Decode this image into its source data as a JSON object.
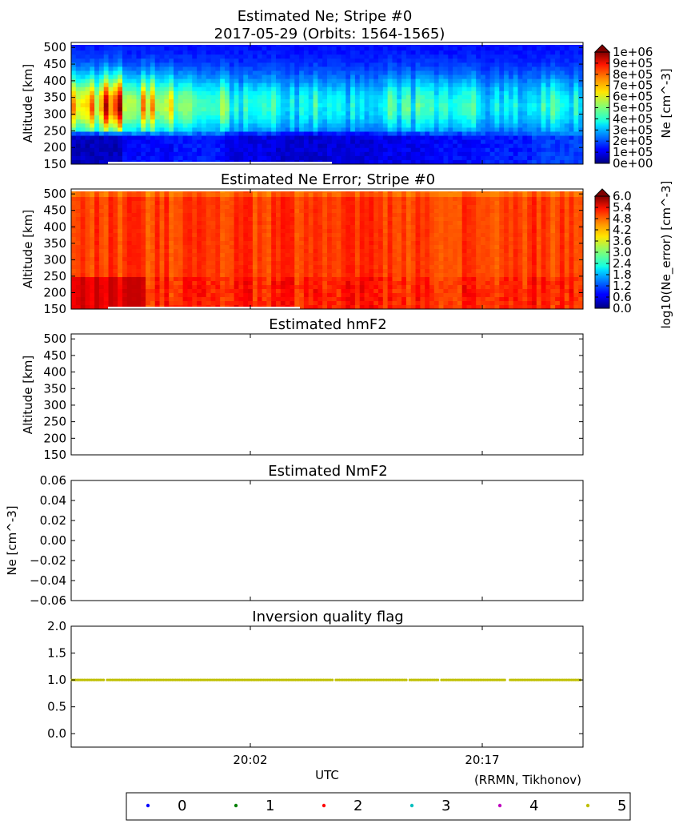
{
  "figure": {
    "panel1_title_line1": "Estimated Ne; Stripe #0",
    "panel1_title_line2": "2017-05-29 (Orbits: 1564-1565)",
    "panel2_title": "Estimated Ne Error; Stripe #0",
    "panel3_title": "Estimated hmF2",
    "panel4_title": "Estimated NmF2",
    "panel5_title": "Inversion quality flag",
    "xlabel": "UTC",
    "credit": "(RRMN, Tikhonov)"
  },
  "chart_data": [
    {
      "type": "heatmap",
      "title": "Estimated Ne; Stripe #0\n2017-05-29 (Orbits: 1564-1565)",
      "ylabel": "Altitude [km]",
      "ylim": [
        150,
        515
      ],
      "yticks": [
        150,
        200,
        250,
        300,
        350,
        400,
        450,
        500
      ],
      "xticks": [
        "20:02",
        "20:17"
      ],
      "colormap": "jet",
      "colorbar": {
        "label": "Ne [cm^-3]",
        "range": [
          0,
          1000000
        ],
        "extend": "max",
        "tick_labels": [
          "0e+00",
          "1e+05",
          "2e+05",
          "3e+05",
          "4e+05",
          "5e+05",
          "6e+05",
          "7e+05",
          "8e+05",
          "9e+05",
          "1e+06"
        ]
      },
      "layers": [
        {
          "altitude_km": [
            310,
            340
          ],
          "relative_intensity": [
            0.62,
            0.5,
            0.36,
            0.3,
            0.25,
            0.24,
            0.28,
            0.27,
            0.25,
            0.26
          ]
        },
        {
          "altitude_km": [
            180,
            240
          ],
          "relative_intensity": [
            0.03,
            0.1,
            0.12,
            0.07,
            0.05,
            0.06,
            0.08,
            0.1,
            0.12,
            0.15
          ]
        }
      ]
    },
    {
      "type": "heatmap",
      "title": "Estimated Ne Error; Stripe #0",
      "ylabel": "Altitude [km]",
      "ylim": [
        150,
        515
      ],
      "yticks": [
        150,
        200,
        250,
        300,
        350,
        400,
        450,
        500
      ],
      "xticks": [
        "20:02",
        "20:17"
      ],
      "colormap": "jet",
      "colorbar": {
        "label": "log10(Ne_error) [cm^-3]",
        "range": [
          0,
          6
        ],
        "extend": "max",
        "tick_labels": [
          "0.0",
          "0.6",
          "1.2",
          "1.8",
          "2.4",
          "3.0",
          "3.6",
          "4.2",
          "4.8",
          "5.4",
          "6.0"
        ]
      },
      "typical_value_range": [
        4.1,
        5.6
      ]
    },
    {
      "type": "scatter",
      "title": "Estimated hmF2",
      "ylabel": "Altitude [km]",
      "ylim": [
        150,
        515
      ],
      "yticks": [
        150,
        200,
        250,
        300,
        350,
        400,
        450,
        500
      ],
      "xticks": [
        "20:02",
        "20:17"
      ],
      "series": []
    },
    {
      "type": "scatter",
      "title": "Estimated NmF2",
      "ylabel": "Ne [cm^-3]",
      "ylim": [
        -0.06,
        0.06
      ],
      "yticks": [
        "-0.06",
        "-0.04",
        "-0.02",
        "0.00",
        "0.02",
        "0.04",
        "0.06"
      ],
      "xticks": [
        "20:02",
        "20:17"
      ],
      "series": []
    },
    {
      "type": "scatter",
      "title": "Inversion quality flag",
      "xlabel": "UTC",
      "ylim": [
        -0.25,
        2.0
      ],
      "yticks": [
        "0.0",
        "0.5",
        "1.0",
        "1.5",
        "2.0"
      ],
      "xticks": [
        "20:02",
        "20:17"
      ],
      "series": [
        {
          "name": "5",
          "color": "#bfbf00",
          "value": 1.0
        }
      ],
      "legend": {
        "placement": "bottom",
        "entries": [
          {
            "name": "0",
            "color": "#0000ff"
          },
          {
            "name": "1",
            "color": "#008000"
          },
          {
            "name": "2",
            "color": "#ff0000"
          },
          {
            "name": "3",
            "color": "#00bfbf"
          },
          {
            "name": "4",
            "color": "#bf00bf"
          },
          {
            "name": "5",
            "color": "#bfbf00"
          }
        ]
      }
    }
  ]
}
